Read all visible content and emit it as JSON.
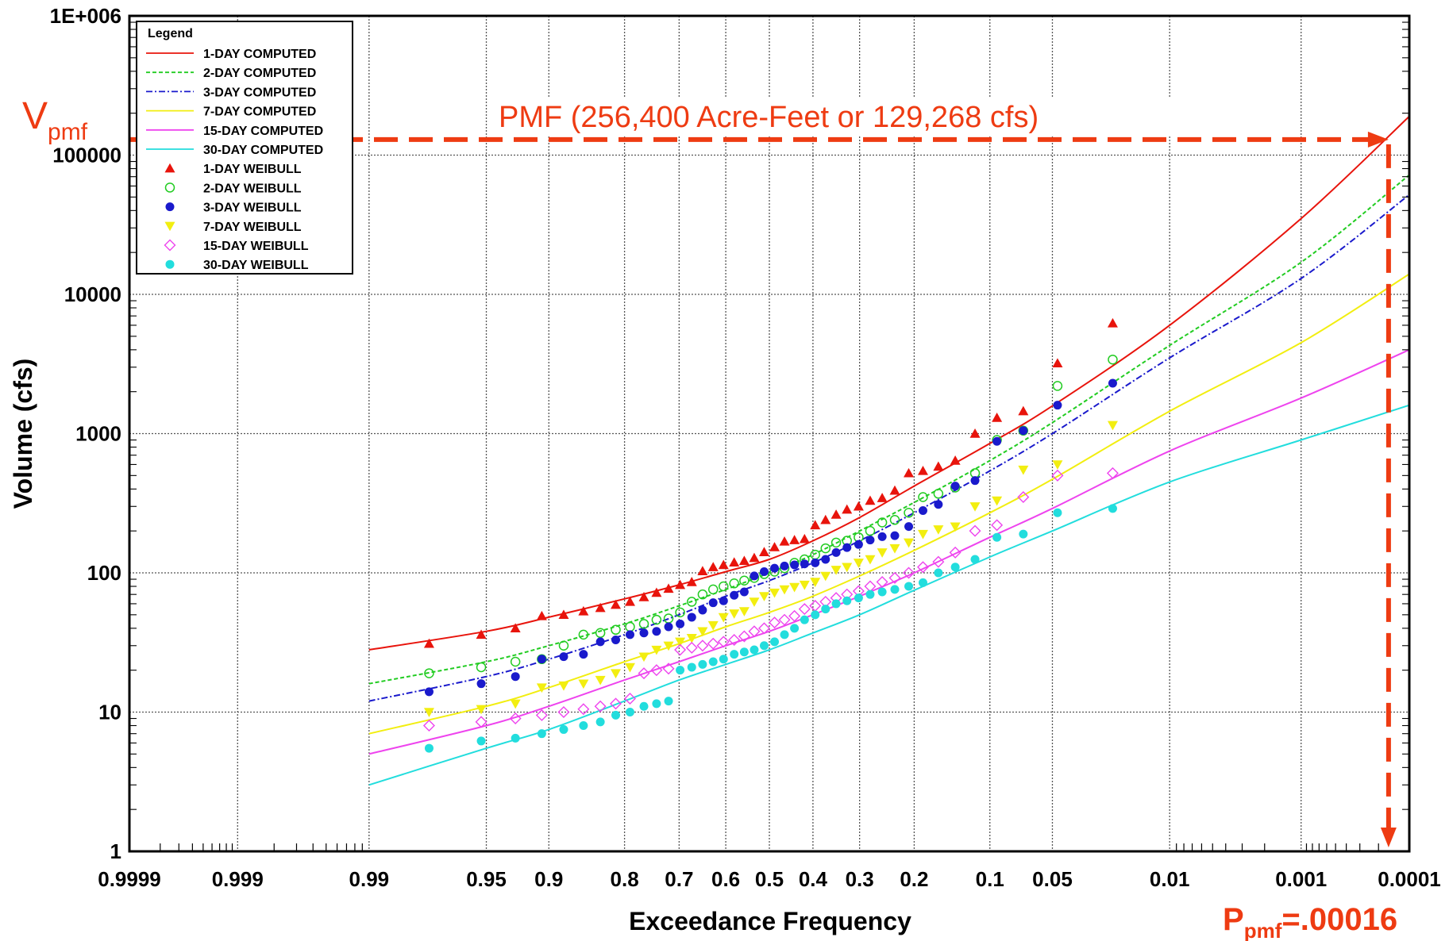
{
  "chart_data": {
    "type": "scatter",
    "title": "",
    "xlabel": "Exceedance Frequency",
    "ylabel": "Volume (cfs)",
    "x_scale": "probability (normal)",
    "y_scale": "log",
    "xlim": [
      0.9999,
      0.0001
    ],
    "ylim": [
      1,
      1000000
    ],
    "grid": true,
    "x_ticks": [
      {
        "v": 0.9999,
        "label": "0.9999"
      },
      {
        "v": 0.999,
        "label": "0.999"
      },
      {
        "v": 0.99,
        "label": "0.99"
      },
      {
        "v": 0.95,
        "label": "0.95"
      },
      {
        "v": 0.9,
        "label": "0.9"
      },
      {
        "v": 0.8,
        "label": "0.8"
      },
      {
        "v": 0.7,
        "label": "0.7"
      },
      {
        "v": 0.6,
        "label": "0.6"
      },
      {
        "v": 0.5,
        "label": "0.5"
      },
      {
        "v": 0.4,
        "label": "0.4"
      },
      {
        "v": 0.3,
        "label": "0.3"
      },
      {
        "v": 0.2,
        "label": "0.2"
      },
      {
        "v": 0.1,
        "label": "0.1"
      },
      {
        "v": 0.05,
        "label": "0.05"
      },
      {
        "v": 0.01,
        "label": "0.01"
      },
      {
        "v": 0.001,
        "label": "0.001"
      },
      {
        "v": 0.0001,
        "label": "0.0001"
      }
    ],
    "y_ticks": [
      {
        "v": 1,
        "label": "1"
      },
      {
        "v": 10,
        "label": "10"
      },
      {
        "v": 100,
        "label": "100"
      },
      {
        "v": 1000,
        "label": "1000"
      },
      {
        "v": 10000,
        "label": "10000"
      },
      {
        "v": 100000,
        "label": "100000"
      },
      {
        "v": 1000000,
        "label": "1E+006"
      }
    ],
    "legend": {
      "title": "Legend",
      "position": "top-left"
    },
    "series": [
      {
        "name": "1-DAY COMPUTED",
        "kind": "line",
        "color": "#e8140c",
        "dash": "solid",
        "x": [
          0.99,
          0.95,
          0.9,
          0.8,
          0.7,
          0.6,
          0.5,
          0.4,
          0.3,
          0.2,
          0.1,
          0.05,
          0.01,
          0.001,
          0.0001
        ],
        "values": [
          28,
          38,
          48,
          65,
          82,
          102,
          125,
          170,
          250,
          420,
          850,
          1580,
          6000,
          35000,
          190000
        ]
      },
      {
        "name": "2-DAY COMPUTED",
        "kind": "line",
        "color": "#22cc22",
        "dash": "dotted",
        "x": [
          0.99,
          0.95,
          0.9,
          0.8,
          0.7,
          0.6,
          0.5,
          0.4,
          0.3,
          0.2,
          0.1,
          0.05,
          0.01,
          0.001,
          0.0001
        ],
        "values": [
          16,
          23,
          30,
          43,
          58,
          76,
          100,
          135,
          200,
          320,
          640,
          1200,
          4300,
          17000,
          72000
        ]
      },
      {
        "name": "3-DAY COMPUTED",
        "kind": "line",
        "color": "#1a1acc",
        "dash": "dashdot",
        "x": [
          0.99,
          0.95,
          0.9,
          0.8,
          0.7,
          0.6,
          0.5,
          0.4,
          0.3,
          0.2,
          0.1,
          0.05,
          0.01,
          0.001,
          0.0001
        ],
        "values": [
          12,
          18,
          24,
          36,
          50,
          68,
          88,
          118,
          170,
          270,
          540,
          1000,
          3500,
          13000,
          52000
        ]
      },
      {
        "name": "7-DAY COMPUTED",
        "kind": "line",
        "color": "#f2ee10",
        "dash": "solid",
        "x": [
          0.99,
          0.95,
          0.9,
          0.8,
          0.7,
          0.6,
          0.5,
          0.4,
          0.3,
          0.2,
          0.1,
          0.05,
          0.01,
          0.001,
          0.0001
        ],
        "values": [
          7,
          11,
          15,
          23,
          31,
          41,
          52,
          68,
          95,
          145,
          270,
          470,
          1450,
          4500,
          14000
        ]
      },
      {
        "name": "15-DAY COMPUTED",
        "kind": "line",
        "color": "#ee44ee",
        "dash": "solid",
        "x": [
          0.99,
          0.95,
          0.9,
          0.8,
          0.7,
          0.6,
          0.5,
          0.4,
          0.3,
          0.2,
          0.1,
          0.05,
          0.01,
          0.001,
          0.0001
        ],
        "values": [
          5,
          8,
          11,
          17,
          23,
          30,
          38,
          50,
          68,
          100,
          180,
          290,
          750,
          1800,
          4000
        ]
      },
      {
        "name": "30-DAY COMPUTED",
        "kind": "line",
        "color": "#22dddd",
        "dash": "solid",
        "x": [
          0.99,
          0.95,
          0.9,
          0.8,
          0.7,
          0.6,
          0.5,
          0.4,
          0.3,
          0.2,
          0.1,
          0.05,
          0.01,
          0.001,
          0.0001
        ],
        "values": [
          3,
          5.5,
          7.5,
          12,
          17,
          22,
          28,
          37,
          50,
          75,
          130,
          200,
          450,
          900,
          1600
        ]
      },
      {
        "name": "1-DAY WEIBULL",
        "kind": "points",
        "marker": "triangle",
        "color": "#e8140c",
        "x": [
          0.976,
          0.953,
          0.93,
          0.907,
          0.884,
          0.86,
          0.837,
          0.814,
          0.791,
          0.767,
          0.744,
          0.721,
          0.698,
          0.674,
          0.651,
          0.628,
          0.605,
          0.581,
          0.558,
          0.535,
          0.512,
          0.488,
          0.465,
          0.442,
          0.419,
          0.395,
          0.372,
          0.349,
          0.326,
          0.302,
          0.279,
          0.256,
          0.233,
          0.209,
          0.186,
          0.163,
          0.14,
          0.116,
          0.093,
          0.07,
          0.047,
          0.023
        ],
        "values": [
          31,
          36,
          40,
          49,
          50,
          53,
          56,
          59,
          62,
          67,
          72,
          77,
          82,
          86,
          103,
          110,
          114,
          119,
          122,
          128,
          141,
          153,
          168,
          172,
          175,
          220,
          240,
          262,
          285,
          300,
          330,
          345,
          390,
          520,
          540,
          580,
          640,
          1000,
          1300,
          1450,
          3200,
          6200
        ]
      },
      {
        "name": "2-DAY WEIBULL",
        "kind": "points",
        "marker": "open-circle",
        "color": "#22cc22",
        "x": [
          0.976,
          0.953,
          0.93,
          0.907,
          0.884,
          0.86,
          0.837,
          0.814,
          0.791,
          0.767,
          0.744,
          0.721,
          0.698,
          0.674,
          0.651,
          0.628,
          0.605,
          0.581,
          0.558,
          0.535,
          0.512,
          0.488,
          0.465,
          0.442,
          0.419,
          0.395,
          0.372,
          0.349,
          0.326,
          0.302,
          0.279,
          0.256,
          0.233,
          0.209,
          0.186,
          0.163,
          0.14,
          0.116,
          0.093,
          0.07,
          0.047,
          0.023
        ],
        "values": [
          19,
          21,
          23,
          24,
          30,
          36,
          37,
          39,
          41,
          43,
          46,
          47,
          52,
          62,
          70,
          76,
          80,
          84,
          88,
          92,
          98,
          102,
          108,
          118,
          125,
          135,
          150,
          165,
          170,
          180,
          200,
          230,
          240,
          270,
          350,
          370,
          410,
          520,
          900,
          1050,
          2200,
          3400
        ]
      },
      {
        "name": "3-DAY WEIBULL",
        "kind": "points",
        "marker": "filled-circle",
        "color": "#1a1acc",
        "x": [
          0.976,
          0.953,
          0.93,
          0.907,
          0.884,
          0.86,
          0.837,
          0.814,
          0.791,
          0.767,
          0.744,
          0.721,
          0.698,
          0.674,
          0.651,
          0.628,
          0.605,
          0.581,
          0.558,
          0.535,
          0.512,
          0.488,
          0.465,
          0.442,
          0.419,
          0.395,
          0.372,
          0.349,
          0.326,
          0.302,
          0.279,
          0.256,
          0.233,
          0.209,
          0.186,
          0.163,
          0.14,
          0.116,
          0.093,
          0.07,
          0.047,
          0.023
        ],
        "values": [
          14,
          16,
          18,
          24,
          25,
          26,
          32,
          33,
          36,
          37,
          38,
          41,
          43,
          48,
          54,
          61,
          63,
          69,
          73,
          95,
          102,
          108,
          112,
          114,
          116,
          118,
          125,
          140,
          152,
          160,
          172,
          182,
          185,
          215,
          280,
          310,
          420,
          460,
          880,
          1050,
          1600,
          2300
        ]
      },
      {
        "name": "7-DAY WEIBULL",
        "kind": "points",
        "marker": "down-triangle",
        "color": "#f2ee10",
        "x": [
          0.976,
          0.953,
          0.93,
          0.907,
          0.884,
          0.86,
          0.837,
          0.814,
          0.791,
          0.767,
          0.744,
          0.721,
          0.698,
          0.674,
          0.651,
          0.628,
          0.605,
          0.581,
          0.558,
          0.535,
          0.512,
          0.488,
          0.465,
          0.442,
          0.419,
          0.395,
          0.372,
          0.349,
          0.326,
          0.302,
          0.279,
          0.256,
          0.233,
          0.209,
          0.186,
          0.163,
          0.14,
          0.116,
          0.093,
          0.07,
          0.047,
          0.023
        ],
        "values": [
          10,
          10.5,
          11.5,
          15,
          15.5,
          16,
          17,
          19,
          21,
          25,
          28,
          30,
          32,
          34,
          38,
          42,
          48,
          51,
          53,
          62,
          68,
          72,
          76,
          79,
          82,
          86,
          95,
          105,
          110,
          118,
          125,
          140,
          150,
          165,
          190,
          205,
          215,
          300,
          330,
          550,
          600,
          1150
        ]
      },
      {
        "name": "15-DAY WEIBULL",
        "kind": "points",
        "marker": "diamond",
        "color": "#ee44ee",
        "x": [
          0.976,
          0.953,
          0.93,
          0.907,
          0.884,
          0.86,
          0.837,
          0.814,
          0.791,
          0.767,
          0.744,
          0.721,
          0.698,
          0.674,
          0.651,
          0.628,
          0.605,
          0.581,
          0.558,
          0.535,
          0.512,
          0.488,
          0.465,
          0.442,
          0.419,
          0.395,
          0.372,
          0.349,
          0.326,
          0.302,
          0.279,
          0.256,
          0.233,
          0.209,
          0.186,
          0.163,
          0.14,
          0.116,
          0.093,
          0.07,
          0.047,
          0.023
        ],
        "values": [
          8,
          8.5,
          9,
          9.5,
          10,
          10.5,
          11,
          11.5,
          12.5,
          19,
          20,
          20.5,
          28,
          29,
          30,
          31,
          32,
          33,
          35,
          38,
          40,
          44,
          46,
          49,
          55,
          58,
          62,
          66,
          70,
          74,
          80,
          86,
          92,
          100,
          110,
          120,
          140,
          200,
          220,
          350,
          500,
          520
        ]
      },
      {
        "name": "30-DAY WEIBULL",
        "kind": "points",
        "marker": "filled-circle",
        "color": "#22dddd",
        "x": [
          0.976,
          0.953,
          0.93,
          0.907,
          0.884,
          0.86,
          0.837,
          0.814,
          0.791,
          0.767,
          0.744,
          0.721,
          0.698,
          0.674,
          0.651,
          0.628,
          0.605,
          0.581,
          0.558,
          0.535,
          0.512,
          0.488,
          0.465,
          0.442,
          0.419,
          0.395,
          0.372,
          0.349,
          0.326,
          0.302,
          0.279,
          0.256,
          0.233,
          0.209,
          0.186,
          0.163,
          0.14,
          0.116,
          0.093,
          0.07,
          0.047,
          0.023
        ],
        "values": [
          5.5,
          6.2,
          6.5,
          7,
          7.5,
          8,
          8.5,
          9.5,
          10,
          11,
          11.5,
          12,
          20,
          21,
          22,
          23,
          24,
          26,
          27,
          28,
          30,
          32,
          36,
          40,
          46,
          50,
          55,
          60,
          63,
          66,
          70,
          73,
          76,
          80,
          85,
          100,
          110,
          125,
          180,
          190,
          270,
          290
        ]
      }
    ],
    "annotations": {
      "pmf_text": "PMF (256,400 Acre-Feet or 129,268 cfs)",
      "v_main": "V",
      "v_sub": "pmf",
      "p_main": "P",
      "p_sub": "pmf",
      "p_tail": "=.00016",
      "v_value": 129268,
      "p_value": 0.00016,
      "color": "#ee3b12"
    }
  }
}
